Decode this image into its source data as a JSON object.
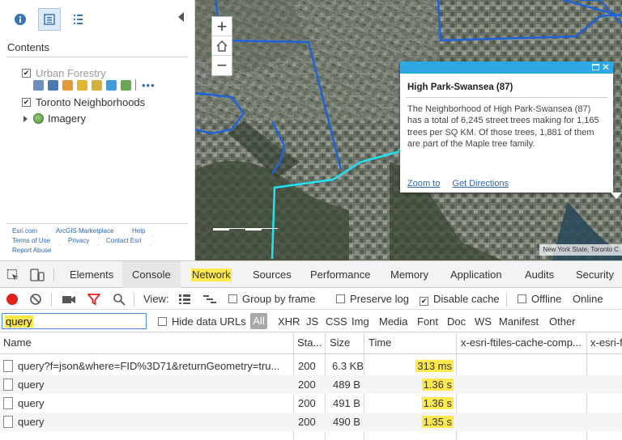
{
  "left_panel": {
    "contents_title": "Contents",
    "layers": [
      {
        "label": "Urban Forestry",
        "checked": true
      },
      {
        "label": "Toronto Neighborhoods",
        "checked": true
      },
      {
        "label": "Imagery",
        "checked": false
      }
    ],
    "layer_tools_more": "•••",
    "footer_links": [
      "Esri.com",
      "ArcGIS Marketplace",
      "Help",
      "Terms of Use",
      "Privacy",
      "Contact Esri",
      "Report Abuse"
    ]
  },
  "map": {
    "zoom_in": "+",
    "zoom_out": "−",
    "attribution": "New York State, Toronto C",
    "popup": {
      "title": "High Park-Swansea (87)",
      "body": "The Neighborhood of High Park-Swansea (87) has a total of 6,245 street trees making for 1,165 trees per SQ KM. Of those trees, 1,881 of them are part of the Maple tree family.",
      "links": [
        "Zoom to",
        "Get Directions"
      ],
      "close": "✕"
    }
  },
  "devtools": {
    "tabs": [
      "Elements",
      "Console",
      "Network",
      "Sources",
      "Performance",
      "Memory",
      "Application",
      "Audits",
      "Security"
    ],
    "selected_tab": "Console",
    "highlighted_tab": "Network",
    "toolbar": {
      "view_label": "View:",
      "group_by_frame": "Group by frame",
      "preserve_log": "Preserve log",
      "disable_cache": "Disable cache",
      "offline": "Offline",
      "online": "Online"
    },
    "filter": {
      "value": "query",
      "hide_data_urls": "Hide data URLs",
      "types": [
        "All",
        "XHR",
        "JS",
        "CSS",
        "Img",
        "Media",
        "Font",
        "Doc",
        "WS",
        "Manifest",
        "Other"
      ]
    },
    "columns": [
      "Name",
      "Sta...",
      "Size",
      "Time",
      "x-esri-ftiles-cache-comp...",
      "x-esri-f"
    ],
    "rows": [
      {
        "name": "query?f=json&where=FID%3D71&returnGeometry=tru...",
        "status": "200",
        "size": "6.3 KB",
        "time": "313 ms"
      },
      {
        "name": "query",
        "status": "200",
        "size": "489 B",
        "time": "1.36 s"
      },
      {
        "name": "query",
        "status": "200",
        "size": "491 B",
        "time": "1.36 s"
      },
      {
        "name": "query",
        "status": "200",
        "size": "490 B",
        "time": "1.35 s"
      }
    ]
  }
}
